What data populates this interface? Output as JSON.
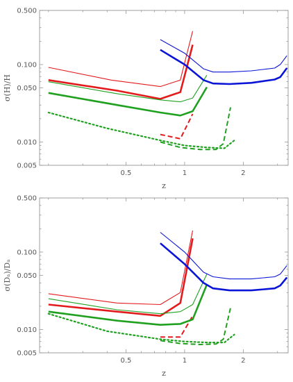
{
  "colors": {
    "red": "#e31a1c",
    "green": "#1fa01f",
    "blue": "#0a14d6",
    "frame": "#888888",
    "text": "#555555"
  },
  "chart_data": [
    {
      "type": "line",
      "xscale": "log",
      "yscale": "log",
      "xlim": [
        0.18,
        3.4
      ],
      "ylim": [
        0.005,
        0.5
      ],
      "xlabel": "z",
      "ylabel": "σ(H)/H",
      "xticks": [
        {
          "value": 0.5,
          "label": "0.5"
        },
        {
          "value": 1,
          "label": "1"
        },
        {
          "value": 2,
          "label": "2"
        }
      ],
      "yticks": [
        {
          "value": 0.005,
          "label": "0.005"
        },
        {
          "value": 0.01,
          "label": "0.010"
        },
        {
          "value": 0.05,
          "label": "0.050"
        },
        {
          "value": 0.1,
          "label": "0.100"
        },
        {
          "value": 0.5,
          "label": "0.500"
        }
      ],
      "series": [
        {
          "color": "red",
          "style": "thin",
          "x": [
            0.2,
            0.42,
            0.75,
            0.95,
            1.1
          ],
          "y": [
            0.092,
            0.063,
            0.052,
            0.063,
            0.27
          ]
        },
        {
          "color": "red",
          "style": "thick",
          "x": [
            0.2,
            0.45,
            0.75,
            0.95,
            1.1
          ],
          "y": [
            0.063,
            0.046,
            0.036,
            0.044,
            0.18
          ]
        },
        {
          "color": "red",
          "style": "dashed",
          "x": [
            0.75,
            0.95,
            1.1
          ],
          "y": [
            0.0125,
            0.011,
            0.023
          ]
        },
        {
          "color": "green",
          "style": "thin",
          "x": [
            0.2,
            0.45,
            0.75,
            0.95,
            1.1,
            1.3
          ],
          "y": [
            0.06,
            0.042,
            0.035,
            0.033,
            0.037,
            0.073
          ]
        },
        {
          "color": "green",
          "style": "thick",
          "x": [
            0.2,
            0.45,
            0.75,
            0.95,
            1.1,
            1.3
          ],
          "y": [
            0.043,
            0.03,
            0.024,
            0.022,
            0.025,
            0.051
          ]
        },
        {
          "color": "green",
          "style": "dashed",
          "x": [
            0.75,
            0.95,
            1.2,
            1.45,
            1.58,
            1.72
          ],
          "y": [
            0.01,
            0.0085,
            0.008,
            0.008,
            0.0095,
            0.028
          ]
        },
        {
          "color": "green",
          "style": "dotted",
          "x": [
            0.2,
            0.4,
            0.75,
            1.0,
            1.3,
            1.6,
            1.8
          ],
          "y": [
            0.024,
            0.015,
            0.0105,
            0.009,
            0.0085,
            0.0083,
            0.0105
          ]
        },
        {
          "color": "blue",
          "style": "thin",
          "x": [
            0.75,
            1.0,
            1.25,
            1.4,
            1.7,
            2.2,
            2.9,
            3.1,
            3.35
          ],
          "y": [
            0.21,
            0.14,
            0.088,
            0.08,
            0.08,
            0.083,
            0.09,
            0.1,
            0.13
          ]
        },
        {
          "color": "blue",
          "style": "thick",
          "x": [
            0.75,
            1.0,
            1.25,
            1.4,
            1.7,
            2.2,
            2.9,
            3.1,
            3.35
          ],
          "y": [
            0.155,
            0.1,
            0.063,
            0.057,
            0.056,
            0.058,
            0.064,
            0.069,
            0.09
          ]
        }
      ]
    },
    {
      "type": "line",
      "xscale": "log",
      "yscale": "log",
      "xlim": [
        0.18,
        3.4
      ],
      "ylim": [
        0.005,
        0.5
      ],
      "xlabel": "z",
      "ylabel": "σ(Dₐ)/Dₐ",
      "xticks": [
        {
          "value": 0.5,
          "label": "0.5"
        },
        {
          "value": 1,
          "label": "1"
        },
        {
          "value": 2,
          "label": "2"
        }
      ],
      "yticks": [
        {
          "value": 0.005,
          "label": "0.005"
        },
        {
          "value": 0.01,
          "label": "0.010"
        },
        {
          "value": 0.05,
          "label": "0.050"
        },
        {
          "value": 0.1,
          "label": "0.100"
        },
        {
          "value": 0.5,
          "label": "0.500"
        }
      ],
      "series": [
        {
          "color": "red",
          "style": "thin",
          "x": [
            0.2,
            0.45,
            0.75,
            0.95,
            1.1
          ],
          "y": [
            0.029,
            0.022,
            0.021,
            0.03,
            0.19
          ]
        },
        {
          "color": "red",
          "style": "thick",
          "x": [
            0.2,
            0.45,
            0.75,
            0.95,
            1.1
          ],
          "y": [
            0.021,
            0.017,
            0.015,
            0.022,
            0.15
          ]
        },
        {
          "color": "red",
          "style": "dashed",
          "x": [
            0.75,
            0.95,
            1.1
          ],
          "y": [
            0.008,
            0.008,
            0.015
          ]
        },
        {
          "color": "green",
          "style": "thin",
          "x": [
            0.2,
            0.45,
            0.75,
            0.95,
            1.1,
            1.3
          ],
          "y": [
            0.025,
            0.018,
            0.016,
            0.017,
            0.021,
            0.052
          ]
        },
        {
          "color": "green",
          "style": "thick",
          "x": [
            0.2,
            0.45,
            0.75,
            0.95,
            1.1,
            1.3
          ],
          "y": [
            0.017,
            0.013,
            0.0115,
            0.0118,
            0.0135,
            0.038
          ]
        },
        {
          "color": "green",
          "style": "dashed",
          "x": [
            0.75,
            0.95,
            1.2,
            1.45,
            1.58,
            1.72
          ],
          "y": [
            0.0072,
            0.0066,
            0.0064,
            0.0065,
            0.0075,
            0.019
          ]
        },
        {
          "color": "green",
          "style": "dotted",
          "x": [
            0.2,
            0.4,
            0.75,
            1.0,
            1.3,
            1.6,
            1.8
          ],
          "y": [
            0.016,
            0.0095,
            0.0075,
            0.007,
            0.0068,
            0.0068,
            0.0086
          ]
        },
        {
          "color": "blue",
          "style": "thin",
          "x": [
            0.75,
            1.0,
            1.25,
            1.4,
            1.7,
            2.2,
            2.9,
            3.1,
            3.35
          ],
          "y": [
            0.18,
            0.1,
            0.055,
            0.048,
            0.045,
            0.045,
            0.048,
            0.052,
            0.067
          ]
        },
        {
          "color": "blue",
          "style": "thick",
          "x": [
            0.75,
            1.0,
            1.25,
            1.4,
            1.7,
            2.2,
            2.9,
            3.1,
            3.35
          ],
          "y": [
            0.13,
            0.07,
            0.04,
            0.034,
            0.032,
            0.032,
            0.034,
            0.037,
            0.047
          ]
        }
      ]
    }
  ]
}
